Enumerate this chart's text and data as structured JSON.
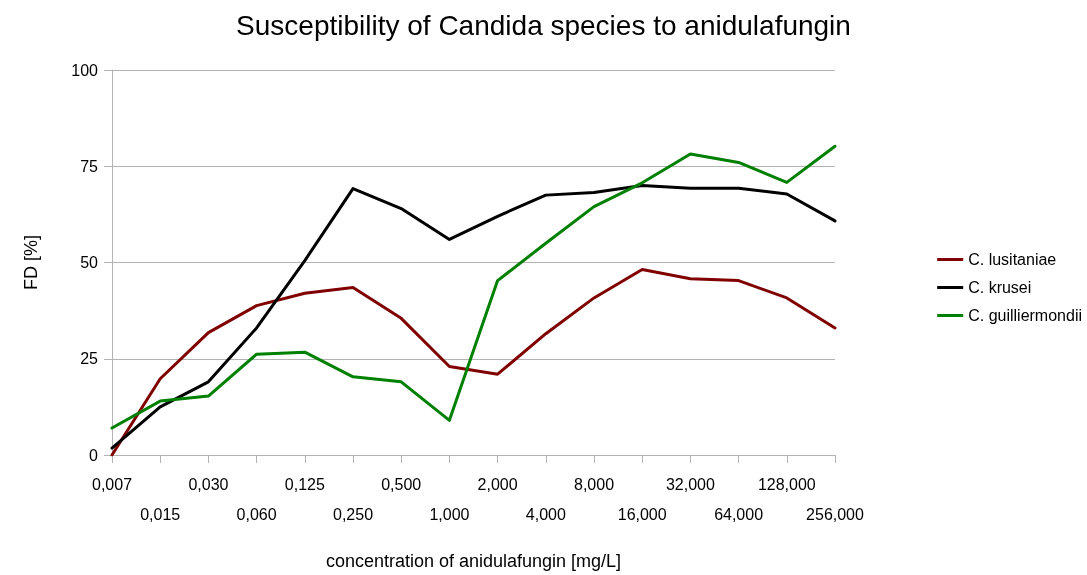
{
  "chart_data": {
    "type": "line",
    "title": "Susceptibility of Candida species to anidulafungin",
    "xlabel": "concentration of anidulafungin [mg/L]",
    "ylabel": "FD [%]",
    "categories": [
      "0,007",
      "0,015",
      "0,030",
      "0,060",
      "0,125",
      "0,250",
      "0,500",
      "1,000",
      "2,000",
      "4,000",
      "8,000",
      "16,000",
      "32,000",
      "64,000",
      "128,000",
      "256,000"
    ],
    "series": [
      {
        "name": "C. lusitaniae",
        "color": "#800000",
        "values": [
          0,
          19.8,
          31.8,
          38.8,
          42,
          43.5,
          35.5,
          23,
          21,
          31.5,
          40.8,
          48.2,
          45.8,
          45.3,
          40.8,
          33
        ]
      },
      {
        "name": "C. krusei",
        "color": "#000000",
        "values": [
          1.8,
          12.5,
          19,
          33,
          50.5,
          69.2,
          64,
          56,
          62,
          67.5,
          68.2,
          70,
          69.3,
          69.3,
          67.8,
          60.8
        ]
      },
      {
        "name": "C. guilliermondii",
        "color": "#008000",
        "values": [
          7,
          14,
          15.3,
          26.2,
          26.7,
          20.3,
          19,
          9,
          45.3,
          55,
          64.5,
          70.7,
          78.2,
          76,
          70.8,
          80.2
        ]
      }
    ],
    "ylim": [
      0,
      100
    ],
    "yticks": [
      0,
      25,
      50,
      75,
      100
    ],
    "grid": "y",
    "legend": "right",
    "marker": "none",
    "line_style": "solid"
  }
}
